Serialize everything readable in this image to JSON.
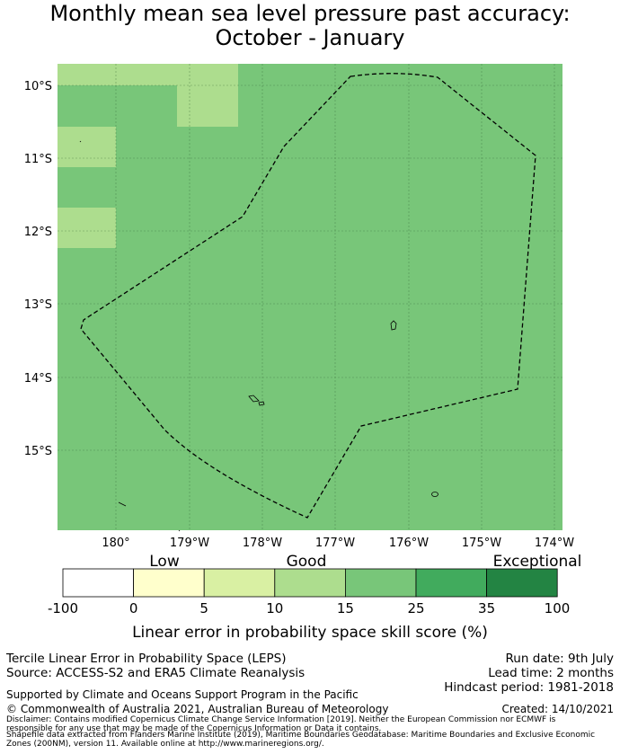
{
  "title": {
    "line1": "Monthly mean sea level pressure past accuracy:",
    "line2": "October - January"
  },
  "map": {
    "lat_ticks": [
      "10°S",
      "11°S",
      "12°S",
      "13°S",
      "14°S",
      "15°S"
    ],
    "lon_ticks": [
      "180°",
      "179°W",
      "178°W",
      "177°W",
      "176°W",
      "175°W",
      "174°W"
    ],
    "background_color": "#78c679",
    "boundary_style": "dashed",
    "zones": [
      {
        "description": "light tile, top row",
        "color": "#addd8e"
      },
      {
        "description": "light tile, upper center",
        "color": "#addd8e"
      },
      {
        "description": "light tile, left edge upper",
        "color": "#addd8e"
      },
      {
        "description": "light tile, left edge middle",
        "color": "#addd8e"
      }
    ]
  },
  "colorbar": {
    "categories": [
      "Low",
      "Good",
      "Exceptional"
    ],
    "tick_labels": [
      "-100",
      "0",
      "5",
      "10",
      "15",
      "25",
      "35",
      "100"
    ],
    "colors": [
      "#ffffff",
      "#ffffcc",
      "#d9f0a3",
      "#addd8e",
      "#78c679",
      "#41ab5d",
      "#238443"
    ],
    "label": "Linear error in probability space skill score (%)"
  },
  "footer": {
    "left_line1": "Tercile Linear Error in Probability Space (LEPS)",
    "left_line2": "Source: ACCESS-S2 and ERA5 Climate Reanalysis",
    "right_line1": "Run date: 9th July",
    "right_line2": "Lead time: 2 months",
    "right_line3": "Hindcast period: 1981-2018",
    "supported": "Supported by Climate and Oceans Support Program in the Pacific",
    "copyright": "© Commonwealth of Australia 2021, Australian Bureau of Meteorology",
    "created": "Created: 14/10/2021",
    "disclaimer1": "Disclaimer: Contains modified Copernicus Climate Change Service Information [2019]. Neither the European Commission nor ECMWF is",
    "disclaimer2": "responsible for any use that may be made of the Copernicus Information or Data it contains.",
    "disclaimer3": "Shapefile data extracted from Flanders Marine Institute (2019), Maritime Boundaries Geodatabase: Maritime Boundaries and Exclusive Economic",
    "disclaimer4": "Zones (200NM), version 11. Available online at http://www.marineregions.org/."
  }
}
